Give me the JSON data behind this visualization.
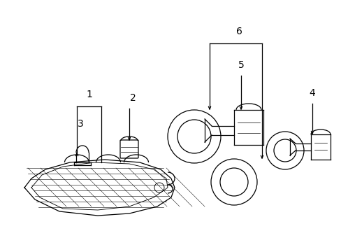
{
  "bg_color": "#ffffff",
  "line_color": "#000000",
  "fig_width": 4.89,
  "fig_height": 3.6,
  "dpi": 100,
  "label_fs": 10
}
